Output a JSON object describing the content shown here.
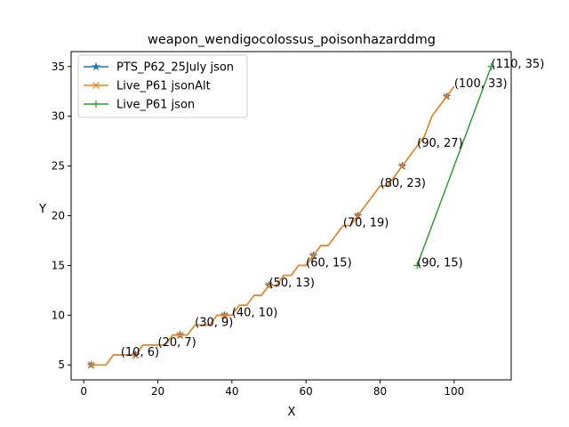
{
  "chart_data": {
    "type": "line",
    "title": "weapon_wendigocolossus_poisonhazarddmg",
    "xlabel": "X",
    "ylabel": "Y",
    "xlim": [
      -3.4,
      115.4
    ],
    "ylim": [
      3.5,
      36.5
    ],
    "xticks": [
      0,
      20,
      40,
      60,
      80,
      100
    ],
    "yticks": [
      5,
      10,
      15,
      20,
      25,
      30,
      35
    ],
    "legend": "upper left",
    "series": [
      {
        "name": "PTS_P62_25July json",
        "color": "#1f77b4",
        "marker": "star",
        "x": [
          2,
          4,
          6,
          8,
          10,
          12,
          14,
          16,
          18,
          20,
          22,
          24,
          26,
          28,
          30,
          32,
          34,
          36,
          38,
          40,
          42,
          44,
          46,
          48,
          50,
          52,
          54,
          56,
          58,
          60,
          62,
          64,
          66,
          68,
          70,
          72,
          74,
          76,
          78,
          80,
          82,
          84,
          86,
          88,
          90,
          92,
          94,
          96,
          98,
          100
        ],
        "values": [
          5,
          5,
          5,
          6,
          6,
          6,
          6,
          7,
          7,
          7,
          7,
          8,
          8,
          8,
          9,
          9,
          9,
          10,
          10,
          10,
          11,
          11,
          12,
          12,
          13,
          13,
          14,
          14,
          15,
          15,
          16,
          17,
          17,
          18,
          19,
          19,
          20,
          21,
          22,
          23,
          23,
          24,
          25,
          26,
          27,
          28,
          30,
          31,
          32,
          33
        ]
      },
      {
        "name": "Live_P61 jsonAlt",
        "color": "#ff7f0e",
        "marker": "x",
        "x": [
          2,
          4,
          6,
          8,
          10,
          12,
          14,
          16,
          18,
          20,
          22,
          24,
          26,
          28,
          30,
          32,
          34,
          36,
          38,
          40,
          42,
          44,
          46,
          48,
          50,
          52,
          54,
          56,
          58,
          60,
          62,
          64,
          66,
          68,
          70,
          72,
          74,
          76,
          78,
          80,
          82,
          84,
          86,
          88,
          90,
          92,
          94,
          96,
          98,
          100
        ],
        "values": [
          5,
          5,
          5,
          6,
          6,
          6,
          6,
          7,
          7,
          7,
          7,
          8,
          8,
          8,
          9,
          9,
          9,
          10,
          10,
          10,
          11,
          11,
          12,
          12,
          13,
          13,
          14,
          14,
          15,
          15,
          16,
          17,
          17,
          18,
          19,
          19,
          20,
          21,
          22,
          23,
          23,
          24,
          25,
          26,
          27,
          28,
          30,
          31,
          32,
          33
        ]
      },
      {
        "name": "Live_P61 json",
        "color": "#2ca02c",
        "marker": "plus",
        "x": [
          90,
          110
        ],
        "values": [
          15,
          35
        ]
      }
    ],
    "annotations": [
      {
        "text": "(10, 6)",
        "x": 10,
        "y": 6
      },
      {
        "text": "(20, 7)",
        "x": 20,
        "y": 7
      },
      {
        "text": "(30, 9)",
        "x": 30,
        "y": 9
      },
      {
        "text": "(40, 10)",
        "x": 40,
        "y": 10
      },
      {
        "text": "(50, 13)",
        "x": 50,
        "y": 13
      },
      {
        "text": "(60, 15)",
        "x": 60,
        "y": 15
      },
      {
        "text": "(70, 19)",
        "x": 70,
        "y": 19
      },
      {
        "text": "(80, 23)",
        "x": 80,
        "y": 23
      },
      {
        "text": "(90, 27)",
        "x": 90,
        "y": 27
      },
      {
        "text": "(100, 33)",
        "x": 100,
        "y": 33
      },
      {
        "text": "(90, 15)",
        "x": 90,
        "y": 15
      },
      {
        "text": "(110, 35)",
        "x": 110,
        "y": 35
      }
    ]
  }
}
